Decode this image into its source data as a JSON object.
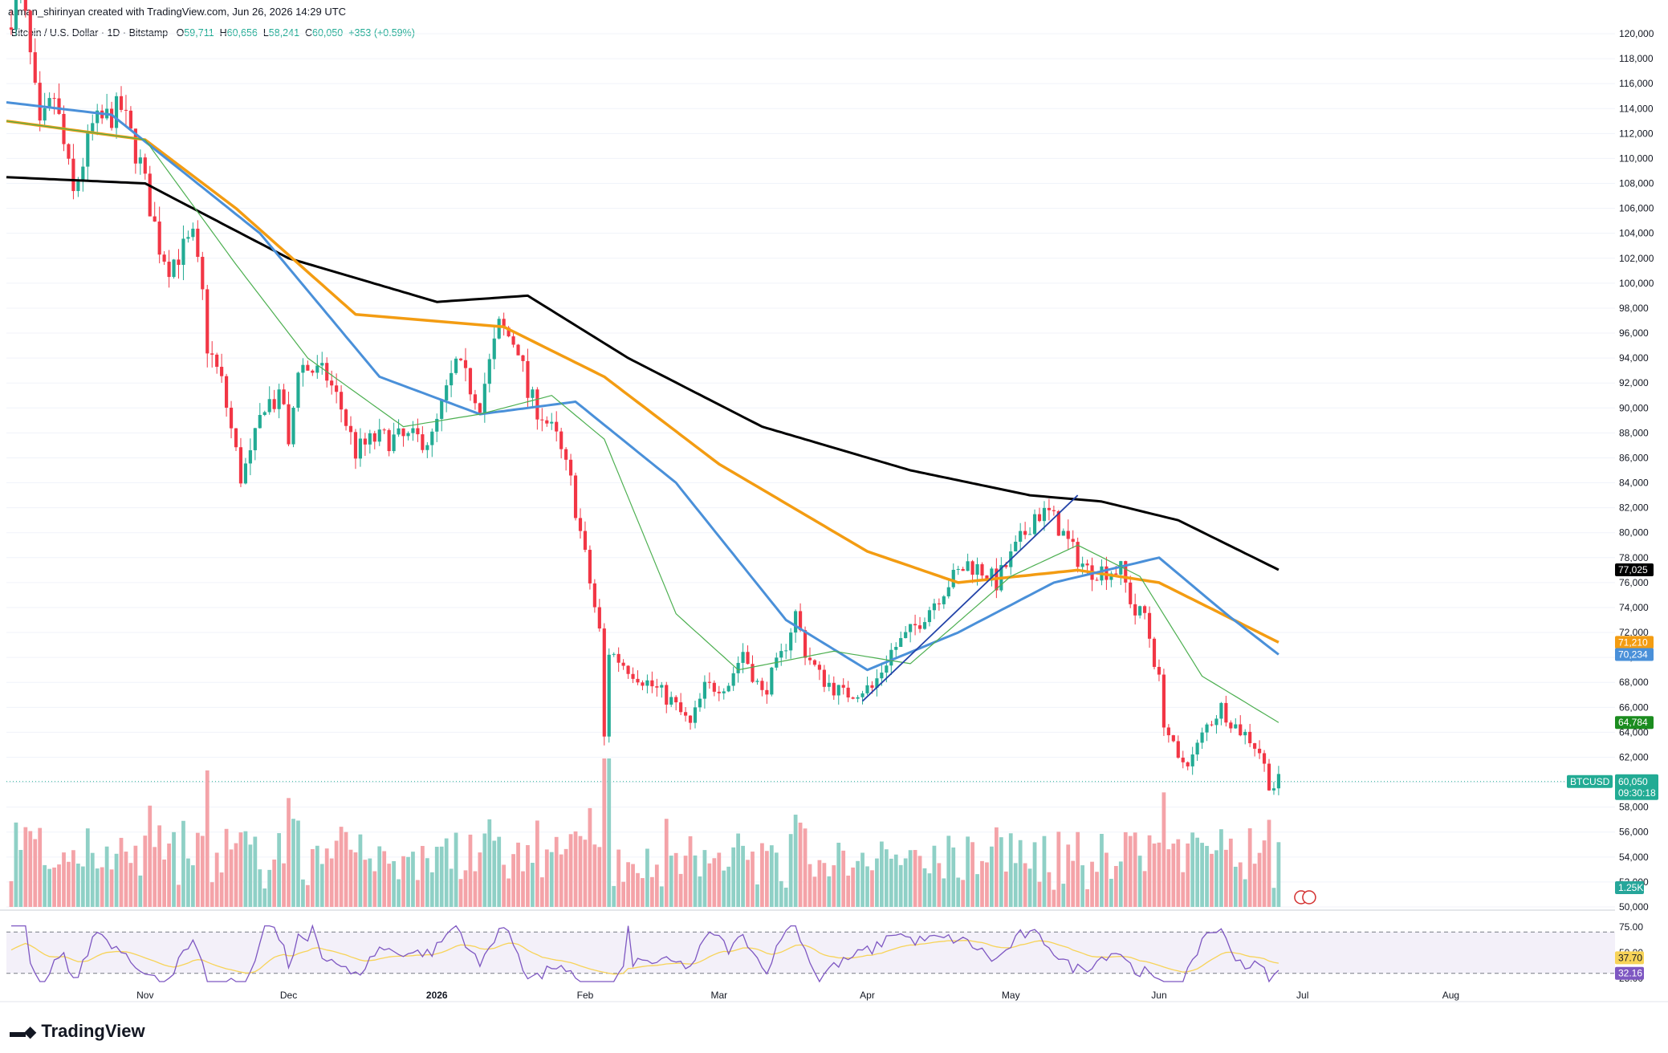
{
  "header": {
    "attribution": "arman_shirinyan created with TradingView.com, Jun 26, 2026 14:29 UTC",
    "symbol": "Bitcoin / U.S. Dollar · 1D · Bitstamp",
    "ohlc": {
      "open_label": "O",
      "open": "59,711",
      "high_label": "H",
      "high": "60,656",
      "low_label": "L",
      "low": "58,241",
      "close_label": "C",
      "close": "60,050",
      "change": "+353 (+0.59%)"
    }
  },
  "brand": {
    "name": "TradingView",
    "logo_icon": "tradingview-logo-icon"
  },
  "colors": {
    "up": "#22ab94",
    "down": "#f23645",
    "vol_up": "#8fd0c6",
    "vol_down": "#f4a3a8",
    "ma_black": "#000000",
    "ma_orange": "#f39c12",
    "ma_blue": "#4a90d9",
    "ma_green": "#4caf50",
    "trendline": "#2343a8",
    "rsi": "#7e57c2",
    "rsi_ma": "#f7d358"
  },
  "chart_data": {
    "type": "candlestick",
    "title": "Bitcoin / U.S. Dollar · 1D · Bitstamp",
    "y_ticks": [
      "120,000",
      "118,000",
      "116,000",
      "114,000",
      "112,000",
      "110,000",
      "108,000",
      "106,000",
      "104,000",
      "102,000",
      "100,000",
      "98,000",
      "96,000",
      "94,000",
      "92,000",
      "90,000",
      "88,000",
      "86,000",
      "84,000",
      "82,000",
      "80,000",
      "78,000",
      "76,000",
      "74,000",
      "72,000",
      "70,000",
      "68,000",
      "66,000",
      "64,000",
      "62,000",
      "60,000",
      "58,000",
      "56,000",
      "54,000",
      "52,000",
      "50,000"
    ],
    "y_tick_values": [
      120000,
      118000,
      116000,
      114000,
      112000,
      110000,
      108000,
      106000,
      104000,
      102000,
      100000,
      98000,
      96000,
      94000,
      92000,
      90000,
      88000,
      86000,
      84000,
      82000,
      80000,
      78000,
      76000,
      74000,
      72000,
      70000,
      68000,
      66000,
      64000,
      62000,
      60000,
      58000,
      56000,
      54000,
      52000,
      50000
    ],
    "ylim": [
      50000,
      120000
    ],
    "x_labels": [
      {
        "label": "Nov",
        "date": "2025-11-01"
      },
      {
        "label": "Dec",
        "date": "2025-12-01"
      },
      {
        "label": "2026",
        "date": "2026-01-01"
      },
      {
        "label": "Feb",
        "date": "2026-02-01"
      },
      {
        "label": "Mar",
        "date": "2026-03-01"
      },
      {
        "label": "Apr",
        "date": "2026-04-01"
      },
      {
        "label": "May",
        "date": "2026-05-01"
      },
      {
        "label": "Jun",
        "date": "2026-06-01"
      },
      {
        "label": "Jul",
        "date": "2026-07-01"
      },
      {
        "label": "Aug",
        "date": "2026-08-01"
      }
    ],
    "x_range": [
      "2025-10-03",
      "2026-09-04"
    ],
    "first_bar_date": "2025-10-03",
    "close_keys": [
      [
        "2025-10-03",
        120500
      ],
      [
        "2025-10-06",
        124000
      ],
      [
        "2025-10-10",
        112000
      ],
      [
        "2025-10-13",
        115000
      ],
      [
        "2025-10-17",
        107000
      ],
      [
        "2025-10-21",
        112500
      ],
      [
        "2025-10-27",
        114000
      ],
      [
        "2025-10-31",
        109500
      ],
      [
        "2025-11-04",
        103000
      ],
      [
        "2025-11-06",
        101500
      ],
      [
        "2025-11-11",
        103500
      ],
      [
        "2025-11-13",
        99000
      ],
      [
        "2025-11-14",
        95000
      ],
      [
        "2025-11-17",
        92000
      ],
      [
        "2025-11-21",
        84500
      ],
      [
        "2025-11-23",
        86000
      ],
      [
        "2025-11-26",
        90500
      ],
      [
        "2025-11-30",
        90500
      ],
      [
        "2025-12-01",
        86500
      ],
      [
        "2025-12-03",
        93500
      ],
      [
        "2025-12-09",
        92500
      ],
      [
        "2025-12-12",
        90000
      ],
      [
        "2025-12-15",
        86500
      ],
      [
        "2025-12-19",
        87500
      ],
      [
        "2025-12-26",
        87500
      ],
      [
        "2025-12-31",
        87500
      ],
      [
        "2026-01-02",
        90000
      ],
      [
        "2026-01-05",
        93500
      ],
      [
        "2026-01-10",
        90500
      ],
      [
        "2026-01-14",
        96500
      ],
      [
        "2026-01-18",
        95000
      ],
      [
        "2026-01-20",
        91000
      ],
      [
        "2026-01-23",
        89500
      ],
      [
        "2026-01-26",
        87500
      ],
      [
        "2026-01-29",
        84000
      ],
      [
        "2026-02-01",
        78000
      ],
      [
        "2026-02-04",
        72000
      ],
      [
        "2026-02-05",
        63500
      ],
      [
        "2026-02-06",
        70500
      ],
      [
        "2026-02-09",
        69500
      ],
      [
        "2026-02-14",
        68000
      ],
      [
        "2026-02-19",
        66500
      ],
      [
        "2026-02-23",
        64500
      ],
      [
        "2026-02-26",
        67500
      ],
      [
        "2026-03-03",
        68000
      ],
      [
        "2026-03-06",
        70500
      ],
      [
        "2026-03-10",
        67000
      ],
      [
        "2026-03-14",
        70000
      ],
      [
        "2026-03-17",
        73500
      ],
      [
        "2026-03-19",
        70500
      ],
      [
        "2026-03-22",
        68500
      ],
      [
        "2026-03-27",
        67000
      ],
      [
        "2026-03-31",
        67500
      ],
      [
        "2026-04-02",
        67500
      ],
      [
        "2026-04-06",
        70500
      ],
      [
        "2026-04-10",
        72000
      ],
      [
        "2026-04-14",
        74000
      ],
      [
        "2026-04-18",
        76000
      ],
      [
        "2026-04-22",
        77500
      ],
      [
        "2026-04-25",
        77000
      ],
      [
        "2026-04-28",
        76000
      ],
      [
        "2026-05-01",
        78000
      ],
      [
        "2026-05-04",
        80000
      ],
      [
        "2026-05-06",
        81500
      ],
      [
        "2026-05-09",
        81500
      ],
      [
        "2026-05-11",
        80500
      ],
      [
        "2026-05-14",
        78500
      ],
      [
        "2026-05-17",
        77000
      ],
      [
        "2026-05-21",
        77000
      ],
      [
        "2026-05-24",
        77000
      ],
      [
        "2026-05-27",
        73500
      ],
      [
        "2026-05-29",
        73500
      ],
      [
        "2026-06-01",
        68000
      ],
      [
        "2026-06-02",
        65000
      ],
      [
        "2026-06-05",
        61500
      ],
      [
        "2026-06-08",
        62000
      ],
      [
        "2026-06-11",
        64500
      ],
      [
        "2026-06-14",
        66000
      ],
      [
        "2026-06-17",
        64500
      ],
      [
        "2026-06-20",
        63500
      ],
      [
        "2026-06-22",
        62500
      ],
      [
        "2026-06-24",
        60000
      ],
      [
        "2026-06-25",
        59700
      ],
      [
        "2026-06-26",
        60050
      ]
    ],
    "ma_200_keys": [
      [
        "2025-10-03",
        108500
      ],
      [
        "2025-11-01",
        108000
      ],
      [
        "2025-12-01",
        102000
      ],
      [
        "2026-01-01",
        98500
      ],
      [
        "2026-01-20",
        99000
      ],
      [
        "2026-02-10",
        94000
      ],
      [
        "2026-03-10",
        88500
      ],
      [
        "2026-04-10",
        85000
      ],
      [
        "2026-05-05",
        83000
      ],
      [
        "2026-05-20",
        82500
      ],
      [
        "2026-06-05",
        81000
      ],
      [
        "2026-06-26",
        77025
      ]
    ],
    "ma_100_keys": [
      [
        "2025-10-03",
        113000
      ],
      [
        "2025-11-01",
        111500
      ],
      [
        "2025-11-20",
        106000
      ],
      [
        "2025-12-15",
        97500
      ],
      [
        "2026-01-15",
        96500
      ],
      [
        "2026-02-05",
        92500
      ],
      [
        "2026-03-01",
        85500
      ],
      [
        "2026-04-01",
        78500
      ],
      [
        "2026-04-20",
        76000
      ],
      [
        "2026-05-15",
        77000
      ],
      [
        "2026-06-01",
        76000
      ],
      [
        "2026-06-26",
        71210
      ]
    ],
    "ma_50_keys": [
      [
        "2025-10-03",
        114500
      ],
      [
        "2025-10-25",
        113500
      ],
      [
        "2025-11-25",
        104000
      ],
      [
        "2025-12-20",
        92500
      ],
      [
        "2026-01-10",
        89500
      ],
      [
        "2026-01-30",
        90500
      ],
      [
        "2026-02-20",
        84000
      ],
      [
        "2026-03-15",
        73000
      ],
      [
        "2026-04-01",
        69000
      ],
      [
        "2026-04-20",
        72000
      ],
      [
        "2026-05-10",
        76000
      ],
      [
        "2026-06-01",
        78000
      ],
      [
        "2026-06-15",
        73500
      ],
      [
        "2026-06-26",
        70234
      ]
    ],
    "ma_20_keys": [
      [
        "2025-10-03",
        113000
      ],
      [
        "2025-11-01",
        111500
      ],
      [
        "2025-11-20",
        101500
      ],
      [
        "2025-12-05",
        94000
      ],
      [
        "2025-12-25",
        88500
      ],
      [
        "2026-01-10",
        89500
      ],
      [
        "2026-01-25",
        91000
      ],
      [
        "2026-02-05",
        87500
      ],
      [
        "2026-02-20",
        73500
      ],
      [
        "2026-03-05",
        69000
      ],
      [
        "2026-03-25",
        70500
      ],
      [
        "2026-04-10",
        69500
      ],
      [
        "2026-05-01",
        76500
      ],
      [
        "2026-05-15",
        79000
      ],
      [
        "2026-05-28",
        76500
      ],
      [
        "2026-06-10",
        68500
      ],
      [
        "2026-06-26",
        64784
      ]
    ],
    "trendline": {
      "start": [
        "2026-03-31",
        66500
      ],
      "end": [
        "2026-05-15",
        83000
      ]
    },
    "volume_label": "1.25K",
    "rsi": {
      "ticks": [
        "75.00",
        "50.00",
        "25.00"
      ],
      "tick_values": [
        75,
        50,
        25
      ],
      "upper": 70,
      "lower": 30,
      "ylim": [
        15,
        85
      ],
      "value": "32.16",
      "ma_value": "37.70"
    },
    "last_price": {
      "symbol_tag": "BTCUSD",
      "value": "60,050",
      "countdown": "09:30:18"
    },
    "price_tags": [
      {
        "value": "77,025",
        "series": "ma_200"
      },
      {
        "value": "71,210",
        "series": "ma_100"
      },
      {
        "value": "70,234",
        "series": "ma_50"
      },
      {
        "value": "64,784",
        "series": "ma_20"
      }
    ],
    "icons": [
      "flag-usd-icon"
    ],
    "grid": false,
    "legend": "none"
  }
}
